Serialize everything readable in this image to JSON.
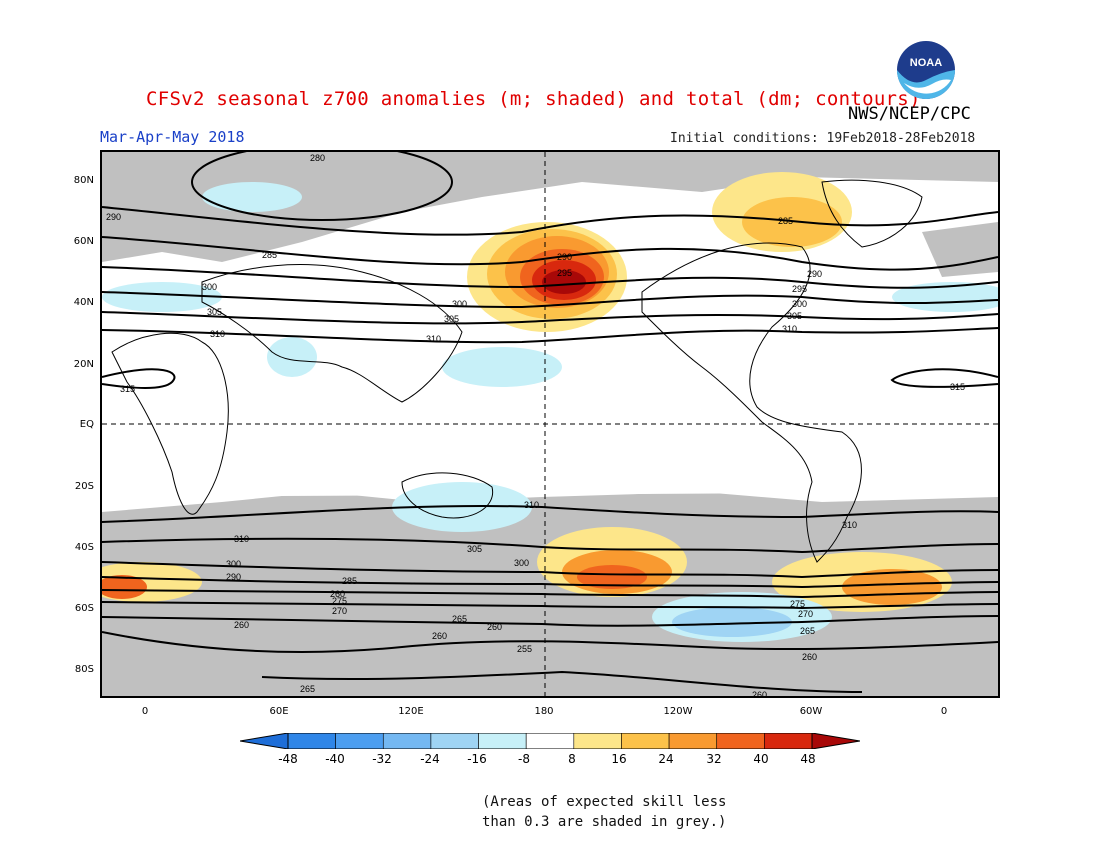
{
  "title": "CFSv2 seasonal z700 anomalies (m; shaded) and total (dm; contours)",
  "agency": "NWS/NCEP/CPC",
  "logo_text": "NOAA",
  "season": "Mar-Apr-May 2018",
  "initial_conditions": "Initial conditions: 19Feb2018-28Feb2018",
  "lat_labels": [
    "80N",
    "60N",
    "40N",
    "20N",
    "EQ",
    "20S",
    "40S",
    "60S",
    "80S"
  ],
  "lon_labels": [
    "0",
    "60E",
    "120E",
    "180",
    "120W",
    "60W",
    "0"
  ],
  "contour_labels": [
    "280",
    "285",
    "290",
    "295",
    "300",
    "305",
    "310",
    "315",
    "260",
    "265",
    "270",
    "275",
    "255"
  ],
  "colorbar": {
    "labels": [
      "-48",
      "-40",
      "-32",
      "-24",
      "-16",
      "-8",
      "8",
      "16",
      "24",
      "32",
      "40",
      "48"
    ],
    "colors": [
      "#1e6ed8",
      "#2f86e8",
      "#4c9ef0",
      "#74b8f2",
      "#9fd4f4",
      "#c7f0f8",
      "#ffffff",
      "#fde68a",
      "#fcc24a",
      "#f99a30",
      "#f0641e",
      "#d8280e",
      "#a80808"
    ]
  },
  "footnote_line1": "(Areas of expected skill less",
  "footnote_line2": "than 0.3 are shaded in grey.)",
  "colors": {
    "title": "#e00000",
    "season": "#1a40c8",
    "skill_grey": "#c0c0c0"
  }
}
